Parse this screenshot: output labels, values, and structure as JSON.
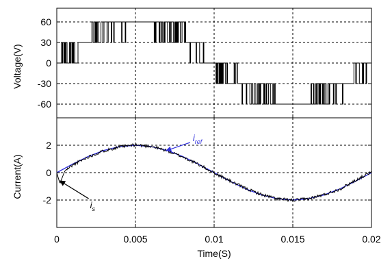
{
  "chart_data": [
    {
      "type": "line",
      "panel": "voltage",
      "ylabel": "Voltage(V)",
      "xlim": [
        0,
        0.02
      ],
      "ylim": [
        -80,
        80
      ],
      "yticks": [
        -60,
        -30,
        0,
        30,
        60
      ],
      "ytick_labels": [
        "-60",
        "-30",
        "0",
        "30",
        "60"
      ],
      "grid": true,
      "series": [
        {
          "style": "pwm-multilevel",
          "color": "#000000",
          "levels": [
            0,
            30,
            60
          ],
          "x": [
            0,
            0.0005,
            0.001,
            0.0015,
            0.002,
            0.0025,
            0.003,
            0.0035,
            0.004,
            0.0045,
            0.005,
            0.0055,
            0.006,
            0.0065,
            0.007,
            0.0075,
            0.008,
            0.0085,
            0.009,
            0.0095,
            0.01,
            0.0105,
            0.011,
            0.0115,
            0.012,
            0.0125,
            0.013,
            0.0135,
            0.014,
            0.0145,
            0.015,
            0.0155,
            0.016,
            0.0165,
            0.017,
            0.0175,
            0.018,
            0.0185,
            0.019,
            0.0195,
            0.02
          ],
          "y_envelope": [
            0,
            9,
            19,
            27,
            35,
            42,
            48,
            53,
            57,
            59,
            60,
            59,
            57,
            53,
            48,
            42,
            35,
            27,
            19,
            9,
            0,
            -9,
            -19,
            -27,
            -35,
            -42,
            -48,
            -53,
            -57,
            -59,
            -60,
            -59,
            -57,
            -53,
            -48,
            -42,
            -35,
            -27,
            -19,
            -9,
            0
          ]
        }
      ]
    },
    {
      "type": "line",
      "panel": "current",
      "xlabel": "Time(S)",
      "ylabel": "Current(A)",
      "xlim": [
        0,
        0.02
      ],
      "ylim": [
        -4,
        4
      ],
      "xticks": [
        0,
        0.005,
        0.01,
        0.015,
        0.02
      ],
      "xtick_labels": [
        "0",
        "0.005",
        "0.01",
        "0.015",
        "0.02"
      ],
      "yticks": [
        -2,
        0,
        2
      ],
      "ytick_labels": [
        "-2",
        "0",
        "2"
      ],
      "grid": true,
      "series": [
        {
          "name": "i_ref",
          "color": "#3333dd",
          "x": [
            0,
            0.001,
            0.002,
            0.003,
            0.004,
            0.005,
            0.006,
            0.007,
            0.008,
            0.009,
            0.01,
            0.011,
            0.012,
            0.013,
            0.014,
            0.015,
            0.016,
            0.017,
            0.018,
            0.019,
            0.02
          ],
          "y": [
            0,
            0.62,
            1.18,
            1.62,
            1.9,
            2.0,
            1.9,
            1.62,
            1.18,
            0.62,
            0,
            -0.62,
            -1.18,
            -1.62,
            -1.9,
            -2.0,
            -1.9,
            -1.62,
            -1.18,
            -0.62,
            0
          ]
        },
        {
          "name": "i_s",
          "color": "#000000",
          "x": [
            0,
            0.0002,
            0.0005,
            0.001,
            0.002,
            0.003,
            0.004,
            0.005,
            0.006,
            0.007,
            0.008,
            0.009,
            0.01,
            0.011,
            0.012,
            0.013,
            0.014,
            0.015,
            0.016,
            0.017,
            0.018,
            0.019,
            0.02
          ],
          "y": [
            0,
            -0.8,
            0.1,
            0.55,
            1.15,
            1.6,
            1.88,
            2.02,
            1.92,
            1.6,
            1.15,
            0.6,
            -0.02,
            -0.6,
            -1.15,
            -1.6,
            -1.9,
            -2.02,
            -1.9,
            -1.6,
            -1.2,
            -0.55,
            0.05
          ]
        }
      ],
      "annotations": [
        {
          "label": "i",
          "subscript": "ref",
          "arrow_to": [
            0.00695,
            1.6
          ],
          "color": "#3333dd"
        },
        {
          "label": "i",
          "subscript": "s",
          "arrow_to": [
            0.0002,
            -0.6
          ],
          "color": "#000000"
        }
      ]
    }
  ]
}
